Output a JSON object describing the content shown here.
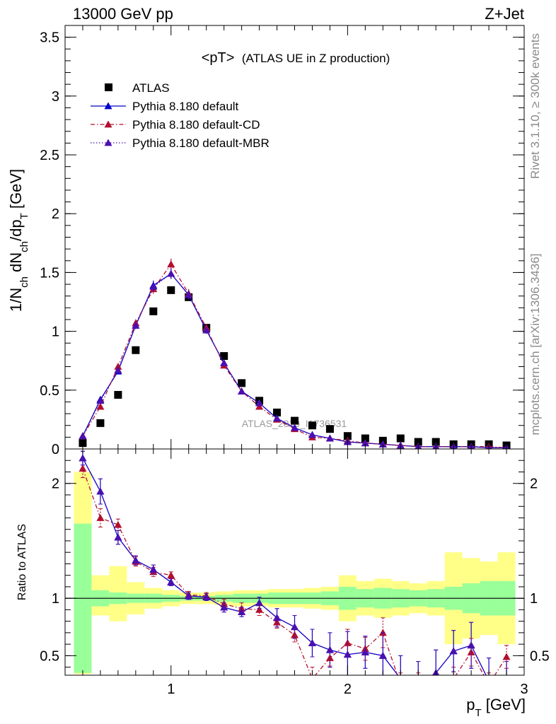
{
  "header": {
    "left": "13000 GeV pp",
    "right": "Z+Jet"
  },
  "side_labels": {
    "top": "Rivet 3.1.10, ≥ 300k events",
    "bottom": "mcplots.cern.ch [arXiv:1306.3436]"
  },
  "watermark": "ATLAS_2019_I1736531",
  "chart_data": [
    {
      "type": "scatter",
      "title": "<pT>",
      "subtitle": "(ATLAS UE in Z production)",
      "xlabel": "p_T [GeV]",
      "ylabel": "1/N_ch dN_ch/dp_T [GeV]",
      "xlim": [
        0.4,
        3.0
      ],
      "ylim": [
        0,
        3.6
      ],
      "x_ticks": [
        1,
        2,
        3
      ],
      "y_ticks": [
        0,
        0.5,
        1,
        1.5,
        2,
        2.5,
        3,
        3.5
      ],
      "y_tick_labels": [
        "0",
        "0.5",
        "1",
        "1.5",
        "2",
        "2.5",
        "3",
        "3.5"
      ],
      "legend_position": "top-left",
      "x": [
        0.5,
        0.6,
        0.7,
        0.8,
        0.9,
        1.0,
        1.1,
        1.2,
        1.3,
        1.4,
        1.5,
        1.6,
        1.7,
        1.8,
        1.9,
        2.0,
        2.1,
        2.2,
        2.3,
        2.4,
        2.5,
        2.6,
        2.7,
        2.8,
        2.9
      ],
      "series": [
        {
          "name": "ATLAS",
          "color": "#000000",
          "marker": "square",
          "values": [
            0.05,
            0.22,
            0.46,
            0.84,
            1.17,
            1.35,
            1.29,
            1.03,
            0.79,
            0.56,
            0.41,
            0.31,
            0.24,
            0.2,
            0.17,
            0.11,
            0.09,
            0.07,
            0.09,
            0.06,
            0.06,
            0.04,
            0.04,
            0.04,
            0.03
          ]
        },
        {
          "name": "Pythia 8.180 default",
          "color": "#0000cc",
          "marker": "triangle",
          "line": "solid",
          "values": [
            0.11,
            0.42,
            0.66,
            1.05,
            1.39,
            1.49,
            1.31,
            1.01,
            0.73,
            0.49,
            0.39,
            0.26,
            0.18,
            0.12,
            0.09,
            0.06,
            0.05,
            0.04,
            0.03,
            0.02,
            0.02,
            0.02,
            0.02,
            0.01,
            0.01
          ]
        },
        {
          "name": "Pythia 8.180 default-CD",
          "color": "#b2102f",
          "marker": "triangle",
          "line": "dashdot",
          "values": [
            0.11,
            0.36,
            0.7,
            1.07,
            1.36,
            1.57,
            1.32,
            1.03,
            0.71,
            0.49,
            0.36,
            0.25,
            0.17,
            0.1,
            0.09,
            0.07,
            0.05,
            0.04,
            0.03,
            0.02,
            0.02,
            0.02,
            0.02,
            0.02,
            0.01
          ]
        },
        {
          "name": "Pythia 8.180 default-MBR",
          "color": "#4b0fb0",
          "marker": "triangle",
          "line": "dotted",
          "values": [
            0.11,
            0.41,
            0.67,
            1.05,
            1.38,
            1.49,
            1.31,
            1.01,
            0.73,
            0.49,
            0.39,
            0.26,
            0.18,
            0.12,
            0.09,
            0.06,
            0.05,
            0.04,
            0.03,
            0.02,
            0.02,
            0.02,
            0.02,
            0.01,
            0.01
          ]
        }
      ]
    },
    {
      "type": "line",
      "ylabel": "Ratio to ATLAS",
      "xlim": [
        0.4,
        3.0
      ],
      "ylim": [
        0.33,
        2.3
      ],
      "x_ticks": [
        1,
        2,
        3
      ],
      "y_ticks": [
        0.5,
        1,
        2
      ],
      "y_tick_labels": [
        "0.5",
        "1",
        "2"
      ],
      "x": [
        0.5,
        0.6,
        0.7,
        0.8,
        0.9,
        1.0,
        1.1,
        1.2,
        1.3,
        1.4,
        1.5,
        1.6,
        1.7,
        1.8,
        1.9,
        2.0,
        2.1,
        2.2,
        2.3,
        2.4,
        2.5,
        2.6,
        2.7,
        2.8,
        2.9
      ],
      "bands": {
        "stat_color": "#99ff99",
        "total_color": "#ffff88",
        "stat_lo": [
          0.35,
          0.93,
          0.95,
          0.96,
          0.96,
          0.97,
          0.98,
          0.98,
          0.97,
          0.96,
          0.96,
          0.95,
          0.95,
          0.95,
          0.94,
          0.9,
          0.92,
          0.91,
          0.92,
          0.93,
          0.92,
          0.9,
          0.87,
          0.85,
          0.85
        ],
        "stat_hi": [
          1.65,
          1.07,
          1.05,
          1.04,
          1.04,
          1.03,
          1.02,
          1.02,
          1.03,
          1.04,
          1.04,
          1.05,
          1.05,
          1.05,
          1.06,
          1.1,
          1.08,
          1.09,
          1.08,
          1.07,
          1.08,
          1.1,
          1.13,
          1.15,
          1.15
        ],
        "total_lo": [
          0.34,
          0.85,
          0.8,
          0.86,
          0.91,
          0.93,
          0.95,
          0.95,
          0.94,
          0.93,
          0.93,
          0.92,
          0.92,
          0.91,
          0.9,
          0.8,
          0.85,
          0.83,
          0.85,
          0.87,
          0.85,
          0.6,
          0.65,
          0.68,
          0.6
        ],
        "total_hi": [
          2.1,
          1.2,
          1.28,
          1.14,
          1.09,
          1.07,
          1.05,
          1.05,
          1.06,
          1.07,
          1.07,
          1.08,
          1.08,
          1.09,
          1.1,
          1.2,
          1.15,
          1.17,
          1.15,
          1.13,
          1.15,
          1.4,
          1.35,
          1.32,
          1.4
        ]
      },
      "series": [
        {
          "name": "Pythia 8.180 default",
          "color": "#0000cc",
          "line": "solid",
          "values": [
            2.22,
            1.93,
            1.53,
            1.33,
            1.25,
            1.14,
            1.02,
            1.01,
            0.92,
            0.88,
            0.96,
            0.83,
            0.75,
            0.61,
            0.55,
            0.51,
            0.53,
            0.5,
            0.3,
            0.25,
            0.35,
            0.54,
            0.59,
            0.28,
            0.25
          ],
          "errors": [
            0.06,
            0.11,
            0.06,
            0.04,
            0.04,
            0.03,
            0.03,
            0.03,
            0.04,
            0.04,
            0.05,
            0.08,
            0.1,
            0.12,
            0.15,
            0.2,
            0.14,
            0.2,
            0.2,
            0.2,
            0.2,
            0.18,
            0.2,
            0.2,
            0.2
          ]
        },
        {
          "name": "Pythia 8.180 default-CD",
          "color": "#b2102f",
          "line": "dashdot",
          "values": [
            2.13,
            1.7,
            1.64,
            1.32,
            1.23,
            1.2,
            1.03,
            1.02,
            0.95,
            0.91,
            0.9,
            0.79,
            0.68,
            0.3,
            0.48,
            0.61,
            0.56,
            0.7,
            0.25,
            0.25,
            0.25,
            0.3,
            0.53,
            0.25,
            0.49
          ],
          "errors": [
            0.08,
            0.08,
            0.05,
            0.04,
            0.04,
            0.03,
            0.03,
            0.03,
            0.04,
            0.05,
            0.05,
            0.05,
            0.06,
            0.1,
            0.07,
            0.12,
            0.1,
            0.13,
            0.1,
            0.1,
            0.1,
            0.1,
            0.12,
            0.1,
            0.1
          ]
        },
        {
          "name": "Pythia 8.180 default-MBR",
          "color": "#4b0fb0",
          "line": "dotted",
          "values": [
            2.22,
            1.93,
            1.53,
            1.33,
            1.25,
            1.14,
            1.02,
            1.01,
            0.92,
            0.88,
            0.96,
            0.83,
            0.75,
            0.61,
            0.55,
            0.51,
            0.53,
            0.5,
            0.3,
            0.25,
            0.35,
            0.54,
            0.59,
            0.28,
            0.25
          ],
          "errors": [
            0.06,
            0.11,
            0.06,
            0.04,
            0.04,
            0.03,
            0.03,
            0.03,
            0.04,
            0.04,
            0.05,
            0.08,
            0.1,
            0.12,
            0.15,
            0.2,
            0.14,
            0.2,
            0.2,
            0.2,
            0.2,
            0.18,
            0.2,
            0.2,
            0.2
          ]
        }
      ]
    }
  ]
}
